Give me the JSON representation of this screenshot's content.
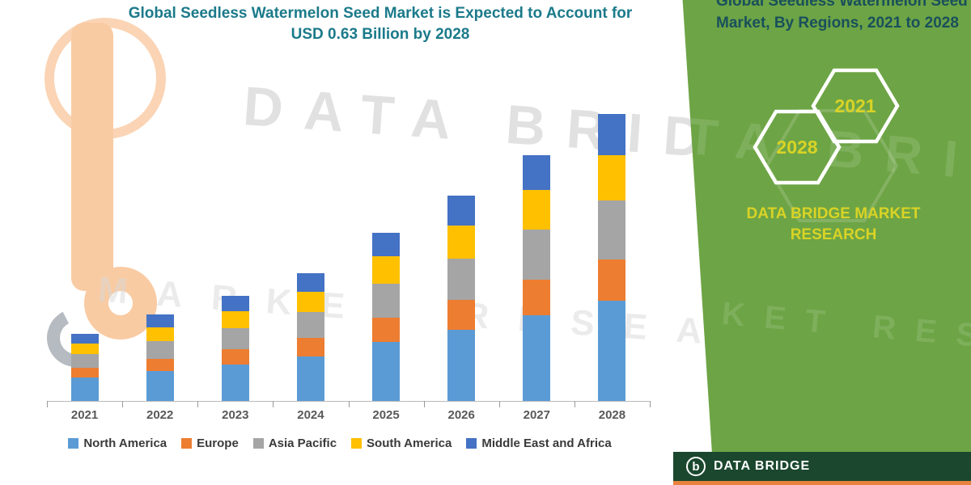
{
  "header": {
    "title_line1": "Global Seedless Watermelon Seed Market is Expected to Account for",
    "title_line2": "USD 0.63 Billion by 2028"
  },
  "watermarks": {
    "line1": "DATA BRIDGE",
    "line2": "MARKET RESEARCH"
  },
  "chart_data": {
    "type": "bar",
    "stacked": true,
    "title": "Global Seedless Watermelon Seed Market is Expected to Account for USD 0.63 Billion by 2028",
    "units": "USD Billion",
    "values_estimated_from_bar_heights": true,
    "categories": [
      "2021",
      "2022",
      "2023",
      "2024",
      "2025",
      "2026",
      "2027",
      "2028"
    ],
    "series": [
      {
        "name": "North America",
        "color": "#5b9bd5",
        "values": [
          0.052,
          0.066,
          0.08,
          0.098,
          0.129,
          0.157,
          0.189,
          0.22
        ]
      },
      {
        "name": "Europe",
        "color": "#ed7d31",
        "values": [
          0.021,
          0.027,
          0.033,
          0.04,
          0.053,
          0.064,
          0.077,
          0.09
        ]
      },
      {
        "name": "Asia Pacific",
        "color": "#a5a5a5",
        "values": [
          0.03,
          0.039,
          0.047,
          0.057,
          0.076,
          0.092,
          0.111,
          0.13
        ]
      },
      {
        "name": "South America",
        "color": "#ffc000",
        "values": [
          0.024,
          0.03,
          0.037,
          0.045,
          0.059,
          0.072,
          0.086,
          0.1
        ]
      },
      {
        "name": "Middle East and Africa",
        "color": "#4472c4",
        "values": [
          0.021,
          0.028,
          0.033,
          0.04,
          0.053,
          0.065,
          0.077,
          0.09
        ]
      }
    ],
    "totals": [
      0.148,
      0.19,
      0.23,
      0.28,
      0.37,
      0.45,
      0.54,
      0.63
    ],
    "ylim": [
      0,
      0.7
    ],
    "grid": false,
    "legend_position": "bottom",
    "xlabel": "",
    "ylabel": ""
  },
  "side_panel": {
    "title_line1": "Global Seedless Watermelon Seed",
    "title_line2": "Market, By Regions, 2021 to 2028",
    "hexagons": [
      {
        "label": "2028"
      },
      {
        "label": "2021"
      }
    ],
    "brand_line1": "DATA BRIDGE MARKET",
    "brand_line2": "RESEARCH",
    "background_color": "#6da445",
    "accent_yellow": "#d9d326"
  },
  "footer": {
    "logo_letter": "b",
    "brand": "DATA BRIDGE",
    "background_color": "#1a472e",
    "accent_color": "#e8823c"
  }
}
